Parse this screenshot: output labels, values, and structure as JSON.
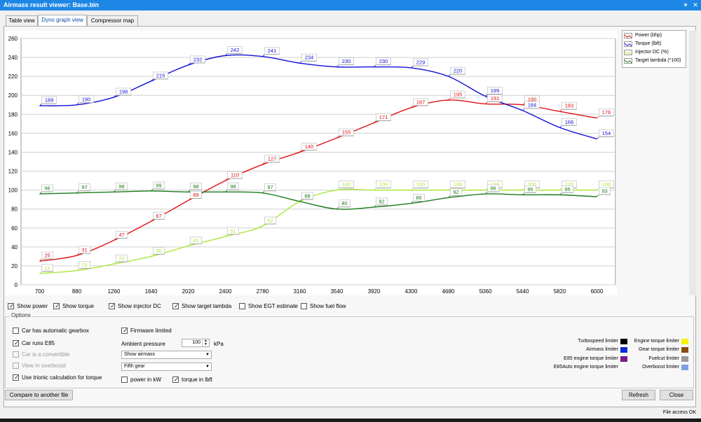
{
  "window": {
    "title": "Airmass result viewer: Base.bin",
    "pin_glyph": "✶",
    "close_glyph": "✕"
  },
  "tabs": [
    {
      "label": "Table view",
      "active": false
    },
    {
      "label": "Dyno graph view",
      "active": true
    },
    {
      "label": "Compressor map",
      "active": false
    }
  ],
  "chart_data": {
    "type": "line",
    "x": [
      700,
      880,
      1260,
      1640,
      2020,
      2400,
      2780,
      3160,
      3540,
      3920,
      4300,
      4680,
      5060,
      5440,
      5820,
      6000
    ],
    "xtick_labels": [
      "700",
      "880",
      "1260",
      "1640",
      "2020",
      "2400",
      "2780",
      "3160",
      "3540",
      "3920",
      "4300",
      "4680",
      "5060",
      "5440",
      "5820",
      "6000"
    ],
    "ylim": [
      0,
      260
    ],
    "yticks": [
      0,
      20,
      40,
      60,
      80,
      100,
      120,
      140,
      160,
      180,
      200,
      220,
      240,
      260
    ],
    "grid": true,
    "legend_position": "top-right",
    "series": [
      {
        "name": "Power (bhp)",
        "color": "#e01010",
        "values": [
          25,
          31,
          47,
          67,
          89,
          110,
          127,
          140,
          155,
          171,
          187,
          195,
          191,
          190,
          183,
          176
        ]
      },
      {
        "name": "Torque (lbft)",
        "color": "#1010d8",
        "values": [
          189,
          190,
          198,
          215,
          232,
          242,
          241,
          234,
          230,
          230,
          229,
          220,
          199,
          184,
          166,
          154
        ]
      },
      {
        "name": "Injector DC (%)",
        "color": "#a8e83a",
        "values": [
          12,
          15,
          22,
          30,
          41,
          51,
          62,
          88,
          100,
          100,
          100,
          100,
          100,
          100,
          100,
          100
        ]
      },
      {
        "name": "Target lambda (*100)",
        "color": "#1a7a1a",
        "values": [
          96,
          97,
          98,
          99,
          98,
          98,
          97,
          88,
          80,
          82,
          86,
          92,
          96,
          95,
          95,
          93
        ]
      }
    ]
  },
  "chart_toggles": [
    {
      "label": "Show power",
      "checked": true
    },
    {
      "label": "Show torque",
      "checked": true
    },
    {
      "label": "Show injector DC",
      "checked": true
    },
    {
      "label": "Show target lambda",
      "checked": true
    },
    {
      "label": "Show EGT estimate",
      "checked": false
    },
    {
      "label": "Show fuel flow",
      "checked": false
    }
  ],
  "options": {
    "group_title": "Options",
    "auto_gearbox": {
      "label": "Car has automatic gearbox",
      "checked": false
    },
    "runs_e85": {
      "label": "Car runs E85",
      "checked": true
    },
    "convertible": {
      "label": "Car is a convertible",
      "checked": false
    },
    "overboost": {
      "label": "View in overboost",
      "checked": false
    },
    "trionic_calc": {
      "label": "Use trionic calculation for torque",
      "checked": true
    },
    "firmware_limited": {
      "label": "Firmware limited",
      "checked": true
    },
    "ambient_label": "Ambient pressure",
    "ambient_value": "100",
    "ambient_unit": "kPa",
    "view_combo": "Show airmass",
    "gear_combo": "Fifth gear",
    "power_kw": {
      "label": "power in kW",
      "checked": false
    },
    "torque_lbft": {
      "label": "torque in lbft",
      "checked": true
    }
  },
  "limiters": [
    {
      "label": "Turbospeed limiter",
      "color": "#000000"
    },
    {
      "label": "Airmass limiter",
      "color": "#0a2ad8"
    },
    {
      "label": "E85 engine torque limiter",
      "color": "#7a1a8a"
    },
    {
      "label": "E85Auto engine torque limiter",
      "color": ""
    },
    {
      "label": "Engine torque limiter",
      "color": "#f5f50a"
    },
    {
      "label": "Gear torque limiter",
      "color": "#8a4a10"
    },
    {
      "label": "Fuelcut limiter",
      "color": "#9a9a9a"
    },
    {
      "label": "Overboost limiter",
      "color": "#7aa0e0"
    }
  ],
  "buttons": {
    "compare": "Compare to another file",
    "refresh": "Refresh",
    "close": "Close"
  },
  "status": "File access OK"
}
